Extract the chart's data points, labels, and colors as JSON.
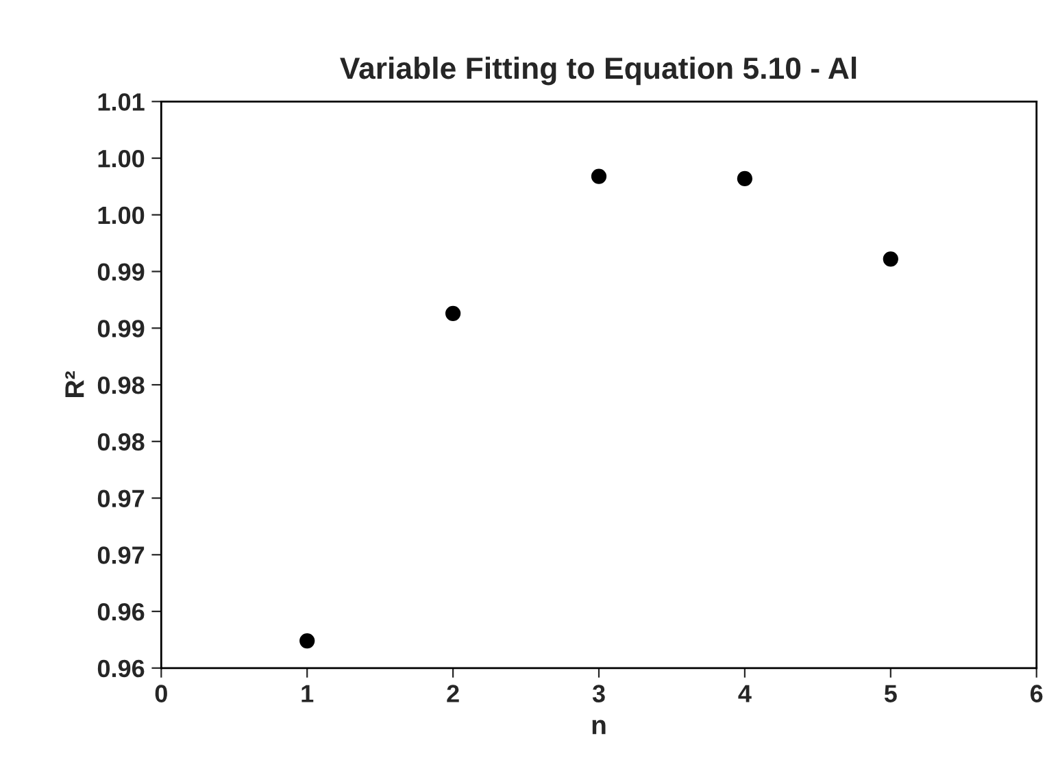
{
  "chart_data": {
    "type": "scatter",
    "title": "Variable Fitting to Equation 5.10 - Al",
    "xlabel": "n",
    "ylabel": "R²",
    "x": [
      1,
      2,
      3,
      4,
      5
    ],
    "series": [
      {
        "color": "#000000",
        "values": [
          0.9624,
          0.9913,
          1.0034,
          1.0032,
          0.9961
        ]
      }
    ],
    "xlim": [
      0,
      6
    ],
    "xticks": [
      0,
      1,
      2,
      3,
      4,
      5,
      6
    ],
    "ylim": [
      0.96,
      1.01
    ],
    "yticks": [
      {
        "value": 0.96,
        "label": "0.96"
      },
      {
        "value": 0.965,
        "label": "0.96"
      },
      {
        "value": 0.97,
        "label": "0.97"
      },
      {
        "value": 0.975,
        "label": "0.97"
      },
      {
        "value": 0.98,
        "label": "0.98"
      },
      {
        "value": 0.985,
        "label": "0.98"
      },
      {
        "value": 0.99,
        "label": "0.99"
      },
      {
        "value": 0.995,
        "label": "0.99"
      },
      {
        "value": 1.0,
        "label": "1.00"
      },
      {
        "value": 1.005,
        "label": "1.00"
      },
      {
        "value": 1.01,
        "label": "1.01"
      }
    ],
    "marker": "circle",
    "grid": false,
    "legend": false
  }
}
